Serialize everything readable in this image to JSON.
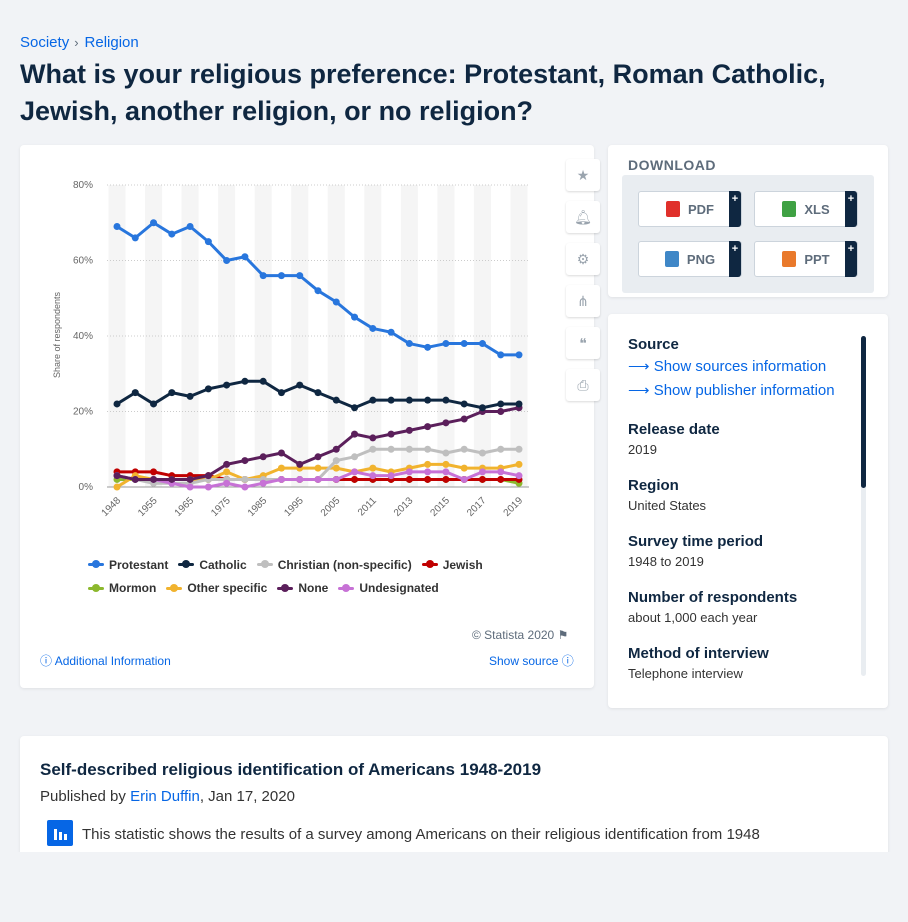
{
  "breadcrumb": [
    "Society",
    "Religion"
  ],
  "page_title": "What is your religious preference: Protestant, Roman Catholic, Jewish, another religion, or no religion?",
  "chart_data": {
    "type": "line",
    "ylabel": "Share of respondents",
    "ylim": [
      0,
      80
    ],
    "y_ticks": [
      "0%",
      "20%",
      "40%",
      "60%",
      "80%"
    ],
    "x_tick_labels": [
      "1948",
      "1955",
      "1965",
      "1975",
      "1985",
      "1995",
      "2005",
      "2011",
      "2013",
      "2015",
      "2017",
      "2019"
    ],
    "grid": true,
    "legend_position": "bottom",
    "series": [
      {
        "name": "Protestant",
        "color": "#2876dd",
        "values": [
          69,
          66,
          70,
          67,
          69,
          65,
          60,
          61,
          56,
          56,
          56,
          52,
          49,
          45,
          42,
          41,
          38,
          37,
          38,
          38,
          38,
          35,
          35
        ]
      },
      {
        "name": "Catholic",
        "color": "#0f2741",
        "values": [
          22,
          25,
          22,
          25,
          24,
          26,
          27,
          28,
          28,
          25,
          27,
          25,
          23,
          21,
          23,
          23,
          23,
          23,
          23,
          22,
          21,
          22,
          22
        ]
      },
      {
        "name": "Christian (non-specific)",
        "color": "#bfbfbf",
        "values": [
          3,
          2,
          1,
          1,
          1,
          2,
          2,
          2,
          2,
          2,
          2,
          2,
          7,
          8,
          10,
          10,
          10,
          10,
          9,
          10,
          9,
          10,
          10
        ]
      },
      {
        "name": "Jewish",
        "color": "#c00000",
        "values": [
          4,
          4,
          4,
          3,
          3,
          3,
          2,
          2,
          2,
          2,
          2,
          2,
          2,
          2,
          2,
          2,
          2,
          2,
          2,
          2,
          2,
          2,
          2
        ]
      },
      {
        "name": "Mormon",
        "color": "#8cb82d",
        "values": [
          2,
          2,
          2,
          2,
          2,
          2,
          2,
          2,
          2,
          2,
          2,
          2,
          2,
          2,
          2,
          2,
          2,
          2,
          2,
          2,
          2,
          2,
          1
        ]
      },
      {
        "name": "Other specific",
        "color": "#f1b32e",
        "values": [
          0,
          3,
          2,
          2,
          2,
          2,
          4,
          2,
          3,
          5,
          5,
          5,
          5,
          4,
          5,
          4,
          5,
          6,
          6,
          5,
          5,
          5,
          6
        ]
      },
      {
        "name": "None",
        "color": "#5b1f5b",
        "values": [
          3,
          2,
          2,
          2,
          2,
          3,
          6,
          7,
          8,
          9,
          6,
          8,
          10,
          14,
          13,
          14,
          15,
          16,
          17,
          18,
          20,
          20,
          21
        ]
      },
      {
        "name": "Undesignated",
        "color": "#c772d6",
        "values": [
          3,
          2,
          2,
          1,
          0,
          0,
          1,
          0,
          1,
          2,
          2,
          2,
          2,
          4,
          3,
          3,
          4,
          4,
          4,
          2,
          4,
          4,
          3
        ]
      }
    ]
  },
  "chart_credit": "© Statista 2020",
  "additional_info": "Additional Information",
  "show_source": "Show source",
  "download": {
    "heading": "DOWNLOAD",
    "buttons": [
      {
        "label": "PDF",
        "color": "#e0302b"
      },
      {
        "label": "XLS",
        "color": "#3fa143"
      },
      {
        "label": "PNG",
        "color": "#3f87c7"
      },
      {
        "label": "PPT",
        "color": "#e9792b"
      }
    ],
    "plus": "+"
  },
  "info": {
    "source_label": "Source",
    "sources_link": "Show sources information",
    "publisher_link": "Show publisher information",
    "release_label": "Release date",
    "release_value": "2019",
    "region_label": "Region",
    "region_value": "United States",
    "period_label": "Survey time period",
    "period_value": "1948 to 2019",
    "respondents_label": "Number of respondents",
    "respondents_value": "about 1,000 each year",
    "method_label": "Method of interview",
    "method_value": "Telephone interview"
  },
  "description": {
    "title": "Self-described religious identification of Americans 1948-2019",
    "published_prefix": "Published by",
    "author": "Erin Duffin",
    "date": ", Jan 17, 2020",
    "text": "This statistic shows the results of a survey among Americans on their religious identification from 1948"
  }
}
